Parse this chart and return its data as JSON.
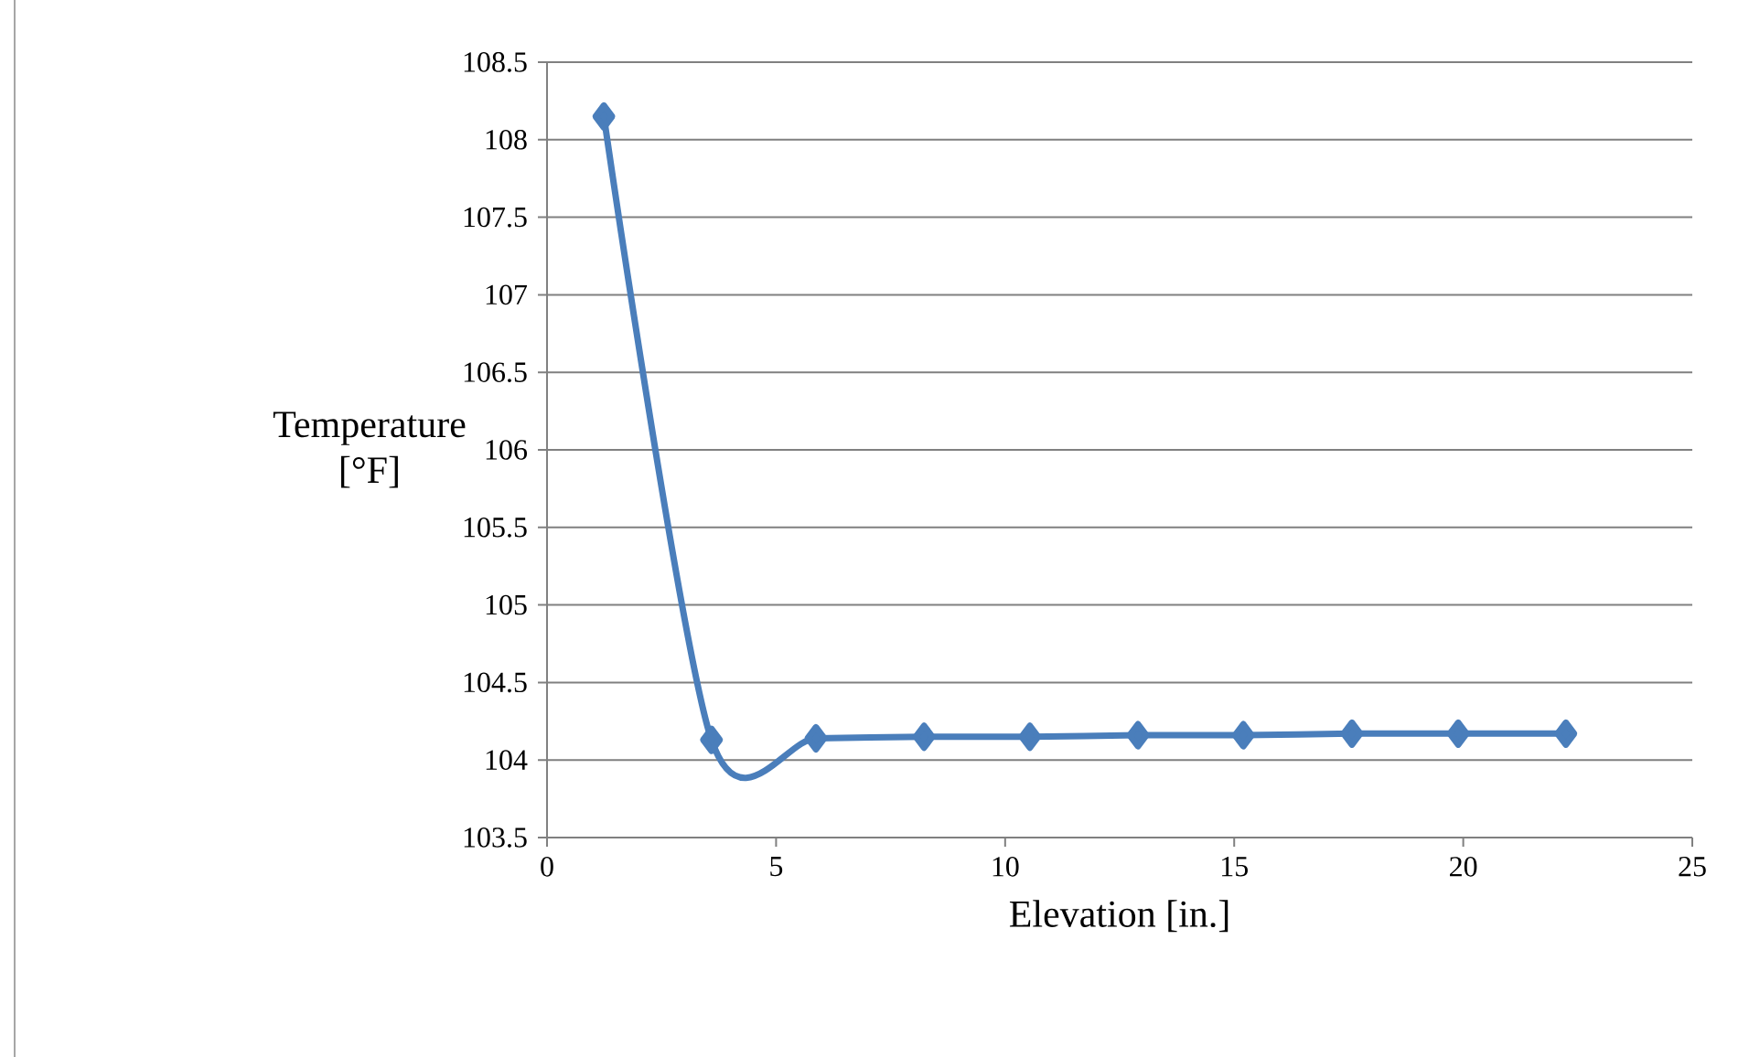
{
  "chart_data": {
    "type": "line",
    "xlabel": "Elevation [in.]",
    "ylabel": "Temperature [°F]",
    "x": [
      1.24,
      3.59,
      5.87,
      8.23,
      10.54,
      12.9,
      15.2,
      17.57,
      19.89,
      22.24
    ],
    "series": [
      {
        "color": "#4a7ebb",
        "values": [
          108.15,
          104.13,
          104.14,
          104.15,
          104.15,
          104.16,
          104.16,
          104.17,
          104.17,
          104.17
        ]
      }
    ],
    "xlim": [
      0,
      25
    ],
    "xticks": [
      0,
      5,
      10,
      15,
      20,
      25
    ],
    "ylim": [
      103.5,
      108.5
    ],
    "yticks": [
      103.5,
      104,
      104.5,
      105,
      105.5,
      106,
      106.5,
      107,
      107.5,
      108,
      108.5
    ],
    "grid": "y",
    "marker": "diamond",
    "line_style": "solid"
  }
}
